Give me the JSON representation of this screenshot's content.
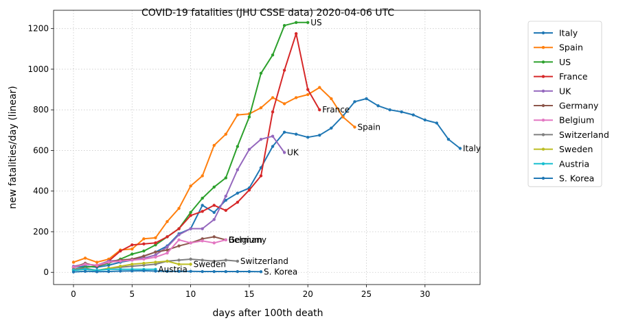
{
  "chart_data": {
    "type": "line",
    "title": "COVID-19 fatalities (JHU CSSE data) 2020-04-06 UTC",
    "xlabel": "days after 100th death",
    "ylabel": "new fatalities/day (linear)",
    "xlim": [
      -1.7,
      34.7
    ],
    "ylim": [
      -60,
      1290
    ],
    "xticks": [
      0,
      5,
      10,
      15,
      20,
      25,
      30
    ],
    "yticks": [
      0,
      200,
      400,
      600,
      800,
      1000,
      1200
    ],
    "grid": true,
    "legend_position": "outside-right",
    "series": [
      {
        "name": "Italy",
        "color": "#1f77b4",
        "end_label": "Italy",
        "x": [
          0,
          1,
          2,
          3,
          4,
          5,
          6,
          7,
          8,
          9,
          10,
          11,
          12,
          13,
          14,
          15,
          16,
          17,
          18,
          19,
          20,
          21,
          22,
          23,
          24,
          25,
          26,
          27,
          28,
          29,
          30,
          31,
          32,
          33
        ],
        "y": [
          25,
          30,
          25,
          35,
          50,
          60,
          80,
          100,
          130,
          190,
          215,
          330,
          295,
          355,
          390,
          415,
          515,
          620,
          690,
          680,
          665,
          675,
          710,
          770,
          840,
          855,
          820,
          800,
          790,
          775,
          750,
          735,
          655,
          610
        ]
      },
      {
        "name": "Spain",
        "color": "#ff7f0e",
        "end_label": "Spain",
        "x": [
          0,
          1,
          2,
          3,
          4,
          5,
          6,
          7,
          8,
          9,
          10,
          11,
          12,
          13,
          14,
          15,
          16,
          17,
          18,
          19,
          20,
          21,
          22,
          23,
          24
        ],
        "y": [
          50,
          70,
          50,
          65,
          110,
          115,
          165,
          170,
          250,
          315,
          425,
          475,
          625,
          680,
          775,
          780,
          810,
          860,
          830,
          860,
          875,
          910,
          855,
          765,
          715
        ]
      },
      {
        "name": "US",
        "color": "#2ca02c",
        "end_label": "US",
        "x": [
          0,
          1,
          2,
          3,
          4,
          5,
          6,
          7,
          8,
          9,
          10,
          11,
          12,
          13,
          14,
          15,
          16,
          17,
          18,
          19,
          20
        ],
        "y": [
          15,
          25,
          30,
          45,
          65,
          90,
          105,
          135,
          175,
          215,
          295,
          365,
          420,
          465,
          620,
          765,
          980,
          1070,
          1215,
          1230,
          1230
        ]
      },
      {
        "name": "France",
        "color": "#d62728",
        "end_label": "France",
        "x": [
          0,
          1,
          2,
          3,
          4,
          5,
          6,
          7,
          8,
          9,
          10,
          11,
          12,
          13,
          14,
          15,
          16,
          17,
          18,
          19,
          20,
          21
        ],
        "y": [
          25,
          40,
          35,
          55,
          105,
          135,
          140,
          145,
          175,
          215,
          280,
          300,
          330,
          305,
          345,
          405,
          475,
          790,
          995,
          1175,
          900,
          800
        ]
      },
      {
        "name": "UK",
        "color": "#9467bd",
        "end_label": "UK",
        "x": [
          0,
          1,
          2,
          3,
          4,
          5,
          6,
          7,
          8,
          9,
          10,
          11,
          12,
          13,
          14,
          15,
          16,
          17,
          18
        ],
        "y": [
          30,
          40,
          35,
          55,
          60,
          65,
          70,
          85,
          125,
          185,
          215,
          215,
          260,
          375,
          505,
          605,
          655,
          670,
          590
        ]
      },
      {
        "name": "Germany",
        "color": "#8c564b",
        "end_label": "Germany",
        "x": [
          0,
          1,
          2,
          3,
          4,
          5,
          6,
          7,
          8,
          9,
          10,
          11,
          12,
          13
        ],
        "y": [
          25,
          45,
          30,
          50,
          60,
          65,
          80,
          100,
          110,
          130,
          145,
          165,
          175,
          160
        ]
      },
      {
        "name": "Belgium",
        "color": "#e377c2",
        "end_label": "Belgium",
        "x": [
          0,
          1,
          2,
          3,
          4,
          5,
          6,
          7,
          8,
          9,
          10,
          11,
          12,
          13
        ],
        "y": [
          25,
          40,
          35,
          50,
          55,
          60,
          65,
          75,
          95,
          160,
          145,
          155,
          145,
          160
        ]
      },
      {
        "name": "Switzerland",
        "color": "#7f7f7f",
        "end_label": "Switzerland",
        "x": [
          0,
          1,
          2,
          3,
          4,
          5,
          6,
          7,
          8,
          9,
          10,
          11,
          12,
          13,
          14
        ],
        "y": [
          15,
          20,
          10,
          20,
          25,
          30,
          35,
          40,
          55,
          60,
          65,
          60,
          55,
          60,
          55
        ]
      },
      {
        "name": "Sweden",
        "color": "#bcbd22",
        "end_label": "Sweden",
        "x": [
          0,
          1,
          2,
          3,
          4,
          5,
          6,
          7,
          8,
          9,
          10
        ],
        "y": [
          10,
          15,
          10,
          20,
          30,
          40,
          45,
          50,
          55,
          40,
          40
        ]
      },
      {
        "name": "Austria",
        "color": "#17becf",
        "end_label": "Austria",
        "x": [
          0,
          1,
          2,
          3,
          4,
          5,
          6,
          7
        ],
        "y": [
          10,
          15,
          10,
          15,
          15,
          15,
          15,
          15
        ]
      },
      {
        "name": "S. Korea",
        "color": "#1f77b4",
        "end_label": "S. Korea",
        "x": [
          0,
          1,
          2,
          3,
          4,
          5,
          6,
          7,
          8,
          9,
          10,
          11,
          12,
          13,
          14,
          15,
          16
        ],
        "y": [
          2,
          5,
          3,
          4,
          6,
          7,
          8,
          6,
          5,
          5,
          5,
          4,
          4,
          4,
          4,
          4,
          3
        ]
      }
    ]
  }
}
